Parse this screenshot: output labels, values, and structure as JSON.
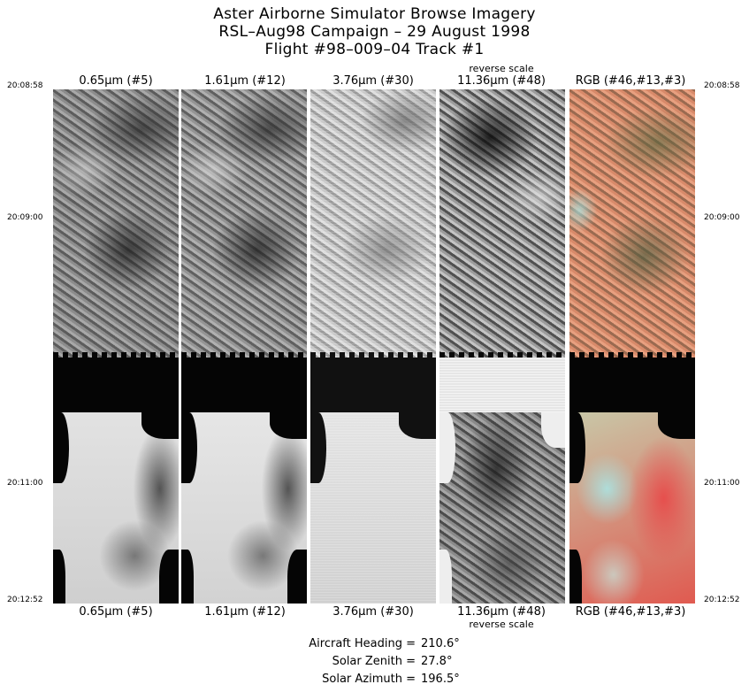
{
  "title": {
    "line1": "Aster Airborne Simulator Browse Imagery",
    "line2": "RSL–Aug98 Campaign – 29 August 1998",
    "line3": "Flight #98–009–04 Track #1"
  },
  "bands": [
    {
      "label": "0.65μm (#5)",
      "note": ""
    },
    {
      "label": "1.61μm (#12)",
      "note": ""
    },
    {
      "label": "3.76μm (#30)",
      "note": ""
    },
    {
      "label": "11.36μm (#48)",
      "note": "reverse scale"
    },
    {
      "label": "RGB (#46,#13,#3)",
      "note": ""
    }
  ],
  "times": [
    "20:08:58",
    "20:09:00",
    "20:11:00",
    "20:12:52"
  ],
  "info": {
    "heading_label": "Aircraft Heading =",
    "heading_value": "210.6°",
    "zenith_label": "Solar Zenith =",
    "zenith_value": "27.8°",
    "azimuth_label": "Solar Azimuth =",
    "azimuth_value": "196.5°"
  },
  "colors": {
    "background": "#ffffff",
    "water": "#050505",
    "rgb_land": "#c8785a",
    "rgb_veg": "#e84848",
    "rgb_cyan": "#a8e8e8"
  }
}
